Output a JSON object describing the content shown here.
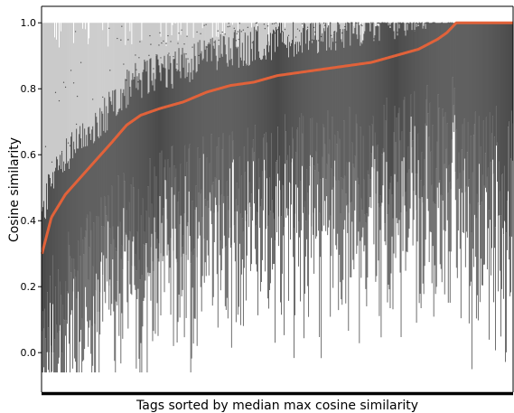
{
  "chart_data": {
    "type": "box",
    "xlabel": "Tags sorted by median max cosine similarity",
    "ylabel": "Cosine similarity",
    "ylim": [
      -0.12,
      1.05
    ],
    "yticks": [
      0.0,
      0.2,
      0.4,
      0.6,
      0.8,
      1.0
    ],
    "ytick_labels": [
      "0.0",
      "0.2",
      "0.4",
      "0.6",
      "0.8",
      "1.0"
    ],
    "x_tick_labels_shown": false,
    "category_count_approx": 520,
    "median_curve": {
      "color": "#e1623a",
      "points": [
        {
          "rank_fraction": 0.0,
          "median": 0.3
        },
        {
          "rank_fraction": 0.02,
          "median": 0.41
        },
        {
          "rank_fraction": 0.05,
          "median": 0.48
        },
        {
          "rank_fraction": 0.1,
          "median": 0.56
        },
        {
          "rank_fraction": 0.15,
          "median": 0.64
        },
        {
          "rank_fraction": 0.18,
          "median": 0.69
        },
        {
          "rank_fraction": 0.21,
          "median": 0.72
        },
        {
          "rank_fraction": 0.25,
          "median": 0.74
        },
        {
          "rank_fraction": 0.3,
          "median": 0.76
        },
        {
          "rank_fraction": 0.35,
          "median": 0.79
        },
        {
          "rank_fraction": 0.4,
          "median": 0.81
        },
        {
          "rank_fraction": 0.45,
          "median": 0.82
        },
        {
          "rank_fraction": 0.5,
          "median": 0.84
        },
        {
          "rank_fraction": 0.55,
          "median": 0.85
        },
        {
          "rank_fraction": 0.6,
          "median": 0.86
        },
        {
          "rank_fraction": 0.65,
          "median": 0.87
        },
        {
          "rank_fraction": 0.7,
          "median": 0.88
        },
        {
          "rank_fraction": 0.75,
          "median": 0.9
        },
        {
          "rank_fraction": 0.8,
          "median": 0.92
        },
        {
          "rank_fraction": 0.84,
          "median": 0.95
        },
        {
          "rank_fraction": 0.86,
          "median": 0.97
        },
        {
          "rank_fraction": 0.88,
          "median": 1.0
        },
        {
          "rank_fraction": 1.0,
          "median": 1.0
        }
      ]
    },
    "spread_summary": {
      "upper_whisker_typical": 1.0,
      "lower_whisker_min": -0.06,
      "lower_whisker_typical_range": [
        0.0,
        0.55
      ]
    },
    "colors": {
      "box_dark": "#4a4a4a",
      "whisker_light": "#bdbdbd",
      "outlier": "#555555",
      "median": "#e1623a",
      "axis": "#000000"
    }
  }
}
